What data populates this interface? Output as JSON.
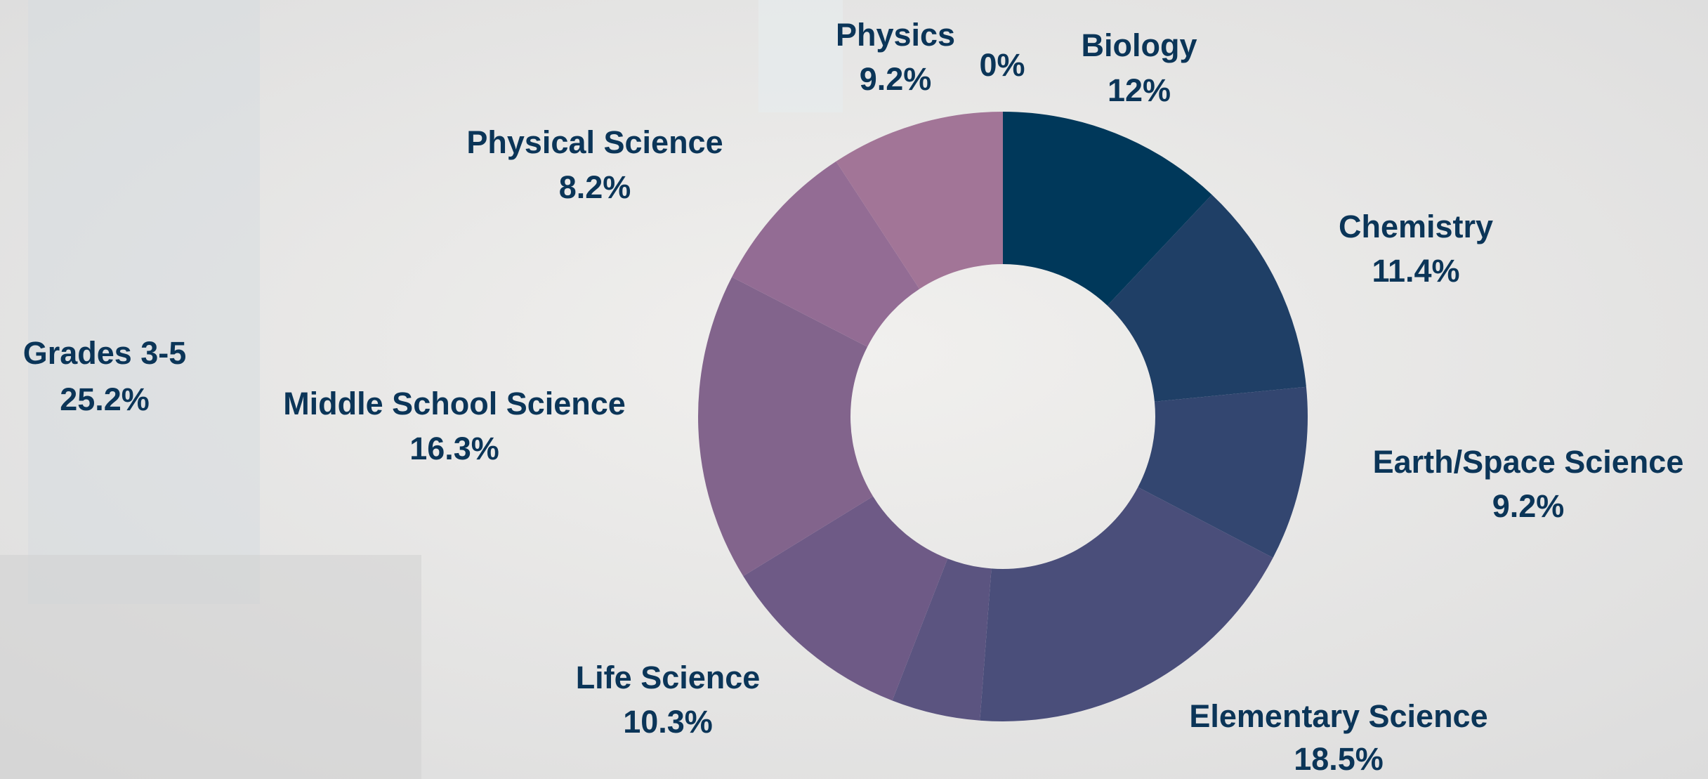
{
  "chart_data": {
    "type": "donut",
    "categories": [
      "Biology",
      "Chemistry",
      "Earth/Space Science",
      "Elementary Science",
      null,
      "Life Science",
      "Middle School Science",
      "Physical Science",
      "Physics",
      null
    ],
    "values": [
      12,
      11.4,
      9.2,
      18.5,
      4.7,
      10.3,
      16.3,
      8.2,
      9.2,
      0
    ],
    "value_labels": [
      "12%",
      "11.4%",
      "9.2%",
      "18.5%",
      null,
      "10.3%",
      "16.3%",
      "8.2%",
      "9.2%",
      "0%"
    ],
    "colors": [
      "#00385a",
      "#1f3f66",
      "#334670",
      "#4a4e7a",
      "#5b5480",
      "#6e5a86",
      "#82648c",
      "#936c94",
      "#a27597",
      "#a27597"
    ],
    "annotations": [
      {
        "text": "Grades 3-5",
        "value": 25.2,
        "value_label": "25.2%"
      }
    ]
  }
}
